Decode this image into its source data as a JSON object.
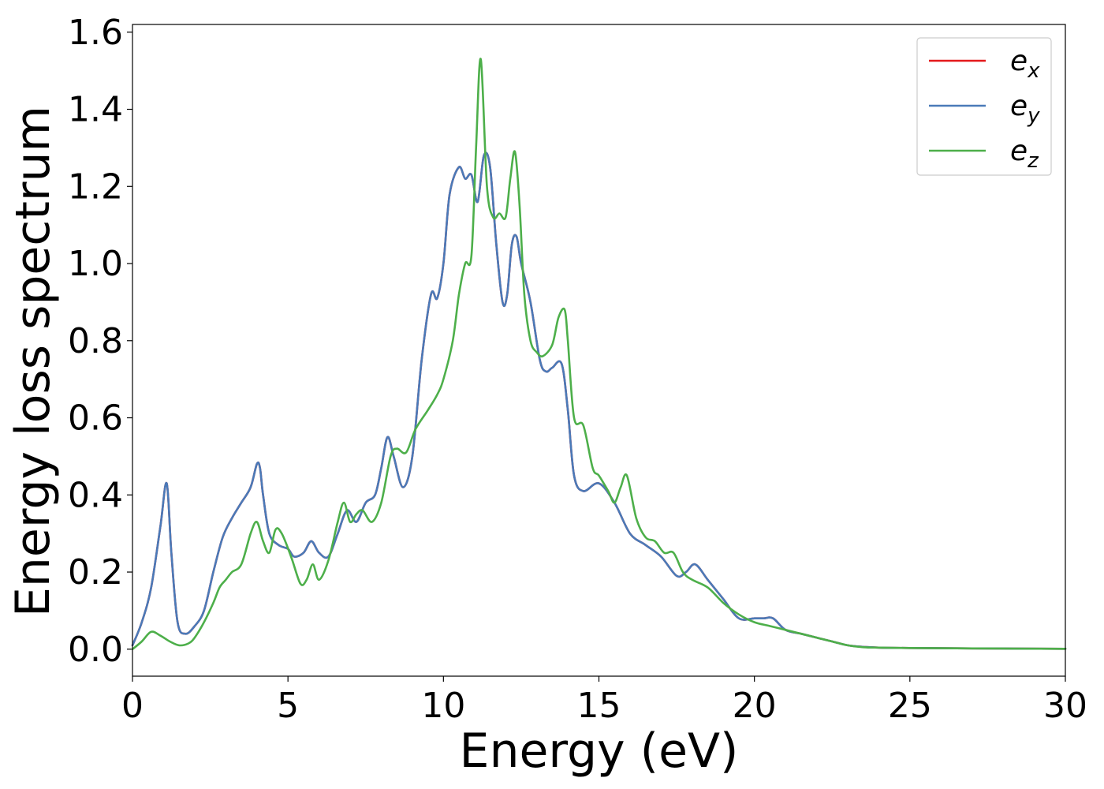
{
  "chart_data": {
    "type": "line",
    "title": "",
    "xlabel": "Energy (eV)",
    "ylabel": "Energy loss spectrum",
    "xlim": [
      0,
      30
    ],
    "ylim": [
      -0.07,
      1.62
    ],
    "xticks": [
      0,
      5,
      10,
      15,
      20,
      25,
      30
    ],
    "xtick_labels": [
      "0",
      "5",
      "10",
      "15",
      "20",
      "25",
      "30"
    ],
    "yticks": [
      0.0,
      0.2,
      0.4,
      0.6,
      0.8,
      1.0,
      1.2,
      1.4,
      1.6
    ],
    "ytick_labels": [
      "0.0",
      "0.2",
      "0.4",
      "0.6",
      "0.8",
      "1.0",
      "1.2",
      "1.4",
      "1.6"
    ],
    "grid": false,
    "legend_position": "top-right",
    "series": [
      {
        "name": "e_x",
        "legend_base": "e",
        "legend_sub": "x",
        "color": "#e41a1c",
        "x": [
          0,
          0.3,
          0.6,
          0.9,
          1.1,
          1.25,
          1.45,
          1.7,
          2.0,
          2.3,
          2.6,
          2.9,
          3.2,
          3.5,
          3.8,
          4.0,
          4.1,
          4.2,
          4.4,
          4.7,
          5.0,
          5.2,
          5.5,
          5.75,
          6.0,
          6.3,
          6.6,
          6.9,
          7.2,
          7.5,
          7.8,
          8.0,
          8.2,
          8.4,
          8.7,
          9.0,
          9.3,
          9.6,
          9.8,
          10.0,
          10.2,
          10.5,
          10.7,
          10.9,
          11.1,
          11.3,
          11.5,
          11.7,
          11.9,
          12.05,
          12.2,
          12.35,
          12.5,
          12.8,
          13.1,
          13.3,
          13.5,
          13.8,
          14.0,
          14.2,
          14.5,
          15.0,
          15.5,
          16.0,
          16.5,
          17.0,
          17.5,
          17.8,
          18.1,
          18.5,
          19.0,
          19.5,
          20.0,
          20.3,
          20.6,
          21.0,
          21.5,
          22.0,
          22.5,
          23.0,
          23.5,
          24.0,
          25.0,
          27.0,
          30.0
        ],
        "y": [
          0.01,
          0.07,
          0.16,
          0.32,
          0.43,
          0.25,
          0.07,
          0.04,
          0.06,
          0.1,
          0.2,
          0.29,
          0.34,
          0.38,
          0.42,
          0.48,
          0.47,
          0.4,
          0.3,
          0.27,
          0.26,
          0.24,
          0.25,
          0.28,
          0.25,
          0.24,
          0.3,
          0.36,
          0.33,
          0.38,
          0.4,
          0.47,
          0.55,
          0.5,
          0.42,
          0.5,
          0.75,
          0.92,
          0.91,
          1.0,
          1.18,
          1.25,
          1.22,
          1.23,
          1.16,
          1.28,
          1.25,
          1.05,
          0.9,
          0.92,
          1.05,
          1.07,
          1.0,
          0.9,
          0.75,
          0.72,
          0.73,
          0.74,
          0.62,
          0.45,
          0.41,
          0.43,
          0.38,
          0.3,
          0.27,
          0.24,
          0.19,
          0.2,
          0.22,
          0.18,
          0.13,
          0.08,
          0.08,
          0.08,
          0.08,
          0.05,
          0.04,
          0.03,
          0.02,
          0.01,
          0.006,
          0.004,
          0.003,
          0.002,
          0.001
        ]
      },
      {
        "name": "e_y",
        "legend_base": "e",
        "legend_sub": "y",
        "color": "#4a7ab8",
        "x": [
          0,
          0.3,
          0.6,
          0.9,
          1.1,
          1.25,
          1.45,
          1.7,
          2.0,
          2.3,
          2.6,
          2.9,
          3.2,
          3.5,
          3.8,
          4.0,
          4.1,
          4.2,
          4.4,
          4.7,
          5.0,
          5.2,
          5.5,
          5.75,
          6.0,
          6.3,
          6.6,
          6.9,
          7.2,
          7.5,
          7.8,
          8.0,
          8.2,
          8.4,
          8.7,
          9.0,
          9.3,
          9.6,
          9.8,
          10.0,
          10.2,
          10.5,
          10.7,
          10.9,
          11.1,
          11.3,
          11.5,
          11.7,
          11.9,
          12.05,
          12.2,
          12.35,
          12.5,
          12.8,
          13.1,
          13.3,
          13.5,
          13.8,
          14.0,
          14.2,
          14.5,
          15.0,
          15.5,
          16.0,
          16.5,
          17.0,
          17.5,
          17.8,
          18.1,
          18.5,
          19.0,
          19.5,
          20.0,
          20.3,
          20.6,
          21.0,
          21.5,
          22.0,
          22.5,
          23.0,
          23.5,
          24.0,
          25.0,
          27.0,
          30.0
        ],
        "y": [
          0.01,
          0.07,
          0.16,
          0.32,
          0.43,
          0.25,
          0.07,
          0.04,
          0.06,
          0.1,
          0.2,
          0.29,
          0.34,
          0.38,
          0.42,
          0.48,
          0.47,
          0.4,
          0.3,
          0.27,
          0.26,
          0.24,
          0.25,
          0.28,
          0.25,
          0.24,
          0.3,
          0.36,
          0.33,
          0.38,
          0.4,
          0.47,
          0.55,
          0.5,
          0.42,
          0.5,
          0.75,
          0.92,
          0.91,
          1.0,
          1.18,
          1.25,
          1.22,
          1.23,
          1.16,
          1.28,
          1.25,
          1.05,
          0.9,
          0.92,
          1.05,
          1.07,
          1.0,
          0.9,
          0.75,
          0.72,
          0.73,
          0.74,
          0.62,
          0.45,
          0.41,
          0.43,
          0.38,
          0.3,
          0.27,
          0.24,
          0.19,
          0.2,
          0.22,
          0.18,
          0.13,
          0.08,
          0.08,
          0.08,
          0.08,
          0.05,
          0.04,
          0.03,
          0.02,
          0.01,
          0.006,
          0.004,
          0.003,
          0.002,
          0.001
        ]
      },
      {
        "name": "e_z",
        "legend_base": "e",
        "legend_sub": "z",
        "color": "#4daf4a",
        "x": [
          0,
          0.3,
          0.6,
          0.9,
          1.2,
          1.5,
          1.8,
          2.0,
          2.3,
          2.6,
          2.8,
          3.0,
          3.2,
          3.5,
          3.8,
          4.0,
          4.2,
          4.4,
          4.6,
          4.8,
          5.1,
          5.4,
          5.6,
          5.8,
          6.0,
          6.3,
          6.6,
          6.8,
          7.0,
          7.2,
          7.4,
          7.7,
          8.0,
          8.3,
          8.5,
          8.8,
          9.1,
          9.5,
          9.8,
          10.0,
          10.3,
          10.5,
          10.7,
          10.9,
          11.05,
          11.2,
          11.4,
          11.6,
          11.8,
          12.0,
          12.15,
          12.3,
          12.45,
          12.6,
          12.8,
          13.0,
          13.2,
          13.5,
          13.7,
          13.9,
          14.0,
          14.2,
          14.5,
          14.8,
          15.0,
          15.3,
          15.5,
          15.7,
          15.9,
          16.2,
          16.5,
          16.8,
          17.1,
          17.4,
          17.7,
          18.0,
          18.5,
          19.0,
          19.5,
          20.0,
          20.5,
          21.0,
          21.5,
          22.0,
          22.5,
          23.0,
          23.5,
          24.0,
          25.0,
          27.0,
          30.0
        ],
        "y": [
          0.0,
          0.02,
          0.045,
          0.035,
          0.02,
          0.01,
          0.015,
          0.03,
          0.07,
          0.12,
          0.16,
          0.18,
          0.2,
          0.22,
          0.3,
          0.33,
          0.28,
          0.25,
          0.31,
          0.3,
          0.24,
          0.17,
          0.18,
          0.22,
          0.18,
          0.23,
          0.33,
          0.38,
          0.33,
          0.35,
          0.36,
          0.33,
          0.38,
          0.5,
          0.52,
          0.51,
          0.57,
          0.62,
          0.66,
          0.7,
          0.8,
          0.92,
          1.0,
          1.02,
          1.3,
          1.53,
          1.2,
          1.12,
          1.13,
          1.12,
          1.22,
          1.29,
          1.15,
          0.92,
          0.8,
          0.77,
          0.76,
          0.79,
          0.86,
          0.88,
          0.8,
          0.6,
          0.58,
          0.47,
          0.45,
          0.41,
          0.38,
          0.42,
          0.45,
          0.34,
          0.29,
          0.28,
          0.25,
          0.25,
          0.2,
          0.18,
          0.16,
          0.12,
          0.09,
          0.07,
          0.06,
          0.05,
          0.04,
          0.03,
          0.02,
          0.01,
          0.005,
          0.004,
          0.003,
          0.002,
          0.001
        ]
      }
    ]
  }
}
